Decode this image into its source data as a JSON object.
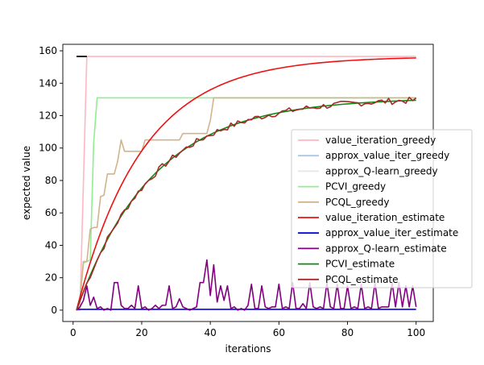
{
  "chart_data": {
    "type": "line",
    "xlabel": "iterations",
    "ylabel": "expected value",
    "xlim": [
      -3,
      105
    ],
    "ylim": [
      -7,
      164
    ],
    "xticks": [
      "0",
      "20",
      "40",
      "60",
      "80",
      "100"
    ],
    "yticks": [
      "0",
      "20",
      "40",
      "60",
      "80",
      "100",
      "120",
      "140",
      "160"
    ],
    "grid": false,
    "legend_placement": "center-right",
    "series": [
      {
        "name": "value_iteration_greedy",
        "color": "#ffb6c1",
        "style": "greedy_step",
        "params": {
          "rise_start": 2,
          "rise_end": 4,
          "top": 156.5,
          "start": 0
        }
      },
      {
        "name": "approx_value_iter_greedy",
        "color": "#a8c8ea",
        "style": "constant",
        "params": {
          "value": 156.5,
          "from": 1,
          "to": 3
        }
      },
      {
        "name": "approx_Q-learn_greedy",
        "color": "#e6e6e6",
        "style": "constant",
        "params": {
          "value": 156.5,
          "from": 1,
          "to": 3
        }
      },
      {
        "name": "PCVI_greedy",
        "color": "#90ee90",
        "style": "points",
        "points": [
          [
            1,
            0
          ],
          [
            2,
            5
          ],
          [
            3,
            29
          ],
          [
            4,
            30
          ],
          [
            5,
            31
          ],
          [
            6,
            103
          ],
          [
            7,
            131
          ],
          [
            8,
            131
          ],
          [
            100,
            131
          ]
        ]
      },
      {
        "name": "PCQL_greedy",
        "color": "#d2b48c",
        "style": "points",
        "points": [
          [
            1,
            0
          ],
          [
            2,
            8
          ],
          [
            3,
            30
          ],
          [
            4,
            30
          ],
          [
            5,
            50
          ],
          [
            6,
            51
          ],
          [
            7,
            51
          ],
          [
            8,
            70
          ],
          [
            9,
            71
          ],
          [
            10,
            84
          ],
          [
            11,
            84
          ],
          [
            12,
            84
          ],
          [
            13,
            92
          ],
          [
            14,
            105
          ],
          [
            15,
            98
          ],
          [
            16,
            98
          ],
          [
            17,
            98
          ],
          [
            18,
            98
          ],
          [
            19,
            98
          ],
          [
            20,
            98
          ],
          [
            21,
            105
          ],
          [
            22,
            105
          ],
          [
            23,
            105
          ],
          [
            24,
            105
          ],
          [
            25,
            105
          ],
          [
            26,
            105
          ],
          [
            27,
            105
          ],
          [
            28,
            105
          ],
          [
            29,
            105
          ],
          [
            30,
            105
          ],
          [
            31,
            105
          ],
          [
            32,
            109
          ],
          [
            33,
            109
          ],
          [
            34,
            109
          ],
          [
            35,
            109
          ],
          [
            36,
            109
          ],
          [
            37,
            109
          ],
          [
            38,
            109
          ],
          [
            39,
            109
          ],
          [
            40,
            117
          ],
          [
            41,
            131
          ],
          [
            42,
            131
          ],
          [
            100,
            131
          ]
        ]
      },
      {
        "name": "value_iteration_estimate",
        "color": "#ee1111",
        "style": "exp",
        "params": {
          "top": 156.5,
          "rate": 0.052,
          "start": 1
        }
      },
      {
        "name": "approx_value_iter_estimate",
        "color": "#0000ee",
        "style": "constant",
        "params": {
          "value": 0.5,
          "from": 1,
          "to": 100
        }
      },
      {
        "name": "approx_Q-learn_estimate",
        "color": "#800080",
        "style": "points",
        "points": [
          [
            1,
            0
          ],
          [
            2,
            2
          ],
          [
            3,
            6
          ],
          [
            4,
            15
          ],
          [
            5,
            3
          ],
          [
            6,
            8
          ],
          [
            7,
            1
          ],
          [
            8,
            2
          ],
          [
            9,
            0
          ],
          [
            10,
            1
          ],
          [
            11,
            0
          ],
          [
            12,
            17
          ],
          [
            13,
            17
          ],
          [
            14,
            3
          ],
          [
            15,
            1
          ],
          [
            16,
            1
          ],
          [
            17,
            3
          ],
          [
            18,
            1
          ],
          [
            19,
            15
          ],
          [
            20,
            1
          ],
          [
            21,
            2
          ],
          [
            22,
            0
          ],
          [
            23,
            1
          ],
          [
            24,
            3
          ],
          [
            25,
            1
          ],
          [
            26,
            3
          ],
          [
            27,
            3
          ],
          [
            28,
            15
          ],
          [
            29,
            1
          ],
          [
            30,
            2
          ],
          [
            31,
            7
          ],
          [
            32,
            2
          ],
          [
            33,
            1
          ],
          [
            34,
            0
          ],
          [
            35,
            1
          ],
          [
            36,
            2
          ],
          [
            37,
            17
          ],
          [
            38,
            17
          ],
          [
            39,
            31
          ],
          [
            40,
            9
          ],
          [
            41,
            28
          ],
          [
            42,
            5
          ],
          [
            43,
            15
          ],
          [
            44,
            6
          ],
          [
            45,
            15
          ],
          [
            46,
            1
          ],
          [
            47,
            2
          ],
          [
            48,
            0
          ],
          [
            49,
            1
          ],
          [
            50,
            0
          ],
          [
            51,
            3
          ],
          [
            52,
            16
          ],
          [
            53,
            1
          ],
          [
            54,
            1
          ],
          [
            55,
            15
          ],
          [
            56,
            2
          ],
          [
            57,
            1
          ],
          [
            58,
            2
          ],
          [
            59,
            2
          ],
          [
            60,
            16
          ],
          [
            61,
            1
          ],
          [
            62,
            2
          ],
          [
            63,
            1
          ],
          [
            64,
            17
          ],
          [
            65,
            1
          ],
          [
            66,
            1
          ],
          [
            67,
            4
          ],
          [
            68,
            1
          ],
          [
            69,
            17
          ],
          [
            70,
            2
          ],
          [
            71,
            1
          ],
          [
            72,
            2
          ],
          [
            73,
            1
          ],
          [
            74,
            17
          ],
          [
            75,
            2
          ],
          [
            76,
            1
          ],
          [
            77,
            16
          ],
          [
            78,
            1
          ],
          [
            79,
            1
          ],
          [
            80,
            15
          ],
          [
            81,
            1
          ],
          [
            82,
            2
          ],
          [
            83,
            1
          ],
          [
            84,
            16
          ],
          [
            85,
            1
          ],
          [
            86,
            2
          ],
          [
            87,
            1
          ],
          [
            88,
            17
          ],
          [
            89,
            1
          ],
          [
            90,
            2
          ],
          [
            91,
            2
          ],
          [
            92,
            2
          ],
          [
            93,
            17
          ],
          [
            94,
            2
          ],
          [
            95,
            17
          ],
          [
            96,
            2
          ],
          [
            97,
            15
          ],
          [
            98,
            2
          ],
          [
            99,
            15
          ],
          [
            100,
            2
          ]
        ]
      },
      {
        "name": "PCVI_estimate",
        "color": "#118811",
        "style": "exp",
        "params": {
          "top": 131,
          "rate": 0.045,
          "start": 1
        }
      },
      {
        "name": "PCQL_estimate",
        "color": "#a52a2a",
        "style": "exp_noisy",
        "params": {
          "top": 131,
          "rate": 0.045,
          "start": 1,
          "seed": 7
        }
      }
    ],
    "annotations": [
      {
        "type": "hline_segment",
        "color": "#000000",
        "y": 156.5,
        "x_from": 1,
        "x_to": 4
      }
    ]
  }
}
